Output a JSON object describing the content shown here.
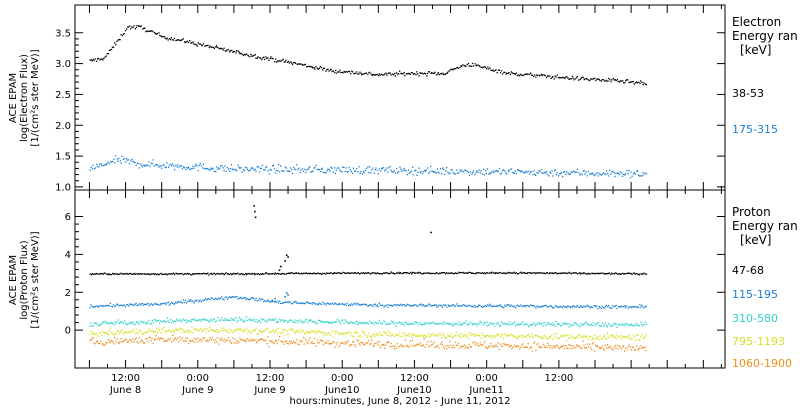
{
  "chart_data": [
    {
      "type": "scatter",
      "panel": "electron",
      "ylabel_lines": [
        "ACE EPAM",
        "log(Electron Flux)",
        "[1/(cm²s ster MeV)]"
      ],
      "ylim": [
        0.95,
        3.95
      ],
      "yticks": [
        1.0,
        1.5,
        2.0,
        2.5,
        3.0,
        3.5
      ],
      "ytick_labels": [
        "1.0",
        "1.5",
        "2.0",
        "2.5",
        "3.0",
        "3.5"
      ],
      "legend_title": [
        "Electron",
        "Energy ran",
        "[keV]"
      ],
      "series": [
        {
          "name": "38-53",
          "color": "#000000",
          "key_points": [
            [
              0,
              3.05
            ],
            [
              0.1,
              3.1
            ],
            [
              0.2,
              3.4
            ],
            [
              0.26,
              3.6
            ],
            [
              0.35,
              3.6
            ],
            [
              0.5,
              3.45
            ],
            [
              0.8,
              3.3
            ],
            [
              1.1,
              3.15
            ],
            [
              1.45,
              3.0
            ],
            [
              1.65,
              2.9
            ],
            [
              2.0,
              2.83
            ],
            [
              2.2,
              2.85
            ],
            [
              2.45,
              2.85
            ],
            [
              2.55,
              2.95
            ],
            [
              2.62,
              3.0
            ],
            [
              2.72,
              2.95
            ],
            [
              2.9,
              2.85
            ],
            [
              3.3,
              2.78
            ],
            [
              3.5,
              2.75
            ],
            [
              3.7,
              2.72
            ],
            [
              3.85,
              2.68
            ]
          ],
          "noise": 0.03
        },
        {
          "name": "175-315",
          "color": "#1c7fd6",
          "key_points": [
            [
              0,
              1.3
            ],
            [
              0.2,
              1.45
            ],
            [
              0.35,
              1.38
            ],
            [
              1.0,
              1.3
            ],
            [
              2.0,
              1.28
            ],
            [
              3.0,
              1.25
            ],
            [
              3.85,
              1.22
            ]
          ],
          "noise": 0.06
        }
      ]
    },
    {
      "type": "scatter",
      "panel": "proton",
      "ylabel_lines": [
        "ACE EPAM",
        "log(Proton Flux)",
        "[1/(cm²s ster MeV)]"
      ],
      "ylim": [
        -2.0,
        7.4
      ],
      "yticks": [
        0,
        2,
        4,
        6
      ],
      "ytick_labels": [
        "0",
        "2",
        "4",
        "6"
      ],
      "legend_title": [
        "Proton",
        "Energy ran",
        "[keV]"
      ],
      "series": [
        {
          "name": "47-68",
          "color": "#000000",
          "key_points": [
            [
              0,
              3.0
            ],
            [
              1.0,
              3.0
            ],
            [
              2.0,
              3.05
            ],
            [
              3.0,
              3.05
            ],
            [
              3.85,
              3.0
            ]
          ],
          "noise": 0.04,
          "extra_points": [
            [
              1.135,
              6.6
            ],
            [
              1.14,
              6.3
            ],
            [
              1.145,
              6.0
            ],
            [
              1.31,
              3.2
            ],
            [
              1.32,
              3.4
            ],
            [
              1.35,
              3.7
            ],
            [
              1.36,
              4.0
            ],
            [
              1.37,
              3.9
            ],
            [
              2.36,
              5.2
            ]
          ]
        },
        {
          "name": "115-195",
          "color": "#1c7fd6",
          "key_points": [
            [
              0,
              1.3
            ],
            [
              0.5,
              1.4
            ],
            [
              1.0,
              1.8
            ],
            [
              1.3,
              1.5
            ],
            [
              2.0,
              1.35
            ],
            [
              3.0,
              1.3
            ],
            [
              3.85,
              1.25
            ]
          ],
          "noise": 0.08,
          "extra_points": [
            [
              1.35,
              1.8
            ],
            [
              1.36,
              2.0
            ],
            [
              1.37,
              1.9
            ],
            [
              1.26,
              1.6
            ],
            [
              1.28,
              1.7
            ]
          ]
        },
        {
          "name": "310-580",
          "color": "#2fd3c8",
          "key_points": [
            [
              0,
              0.35
            ],
            [
              0.5,
              0.5
            ],
            [
              1.0,
              0.6
            ],
            [
              2.0,
              0.4
            ],
            [
              3.0,
              0.35
            ],
            [
              3.85,
              0.3
            ]
          ],
          "noise": 0.12
        },
        {
          "name": "795-1193",
          "color": "#d6e020",
          "key_points": [
            [
              0,
              -0.15
            ],
            [
              0.5,
              0.0
            ],
            [
              1.0,
              0.05
            ],
            [
              2.0,
              -0.2
            ],
            [
              3.0,
              -0.3
            ],
            [
              3.85,
              -0.35
            ]
          ],
          "noise": 0.15
        },
        {
          "name": "1060-1900",
          "color": "#f08c1e",
          "key_points": [
            [
              0,
              -0.6
            ],
            [
              0.5,
              -0.45
            ],
            [
              1.0,
              -0.5
            ],
            [
              2.0,
              -0.7
            ],
            [
              3.0,
              -0.8
            ],
            [
              3.85,
              -0.95
            ]
          ],
          "noise": 0.2
        }
      ]
    }
  ],
  "x_axis": {
    "xlim": [
      -0.1,
      4.4
    ],
    "tick_positions": [
      0.25,
      0.75,
      1.25,
      1.75,
      2.25,
      2.75,
      3.25
    ],
    "tick_labels": [
      "12:00",
      "0:00",
      "12:00",
      "0:00",
      "12:00",
      "0:00",
      "12:00"
    ],
    "date_labels": [
      "June 8",
      "June 9",
      "June 9",
      "June10",
      "June10",
      "June11",
      ""
    ],
    "xlabel": "hours:minutes, June  8, 2012 - June 11, 2012"
  }
}
